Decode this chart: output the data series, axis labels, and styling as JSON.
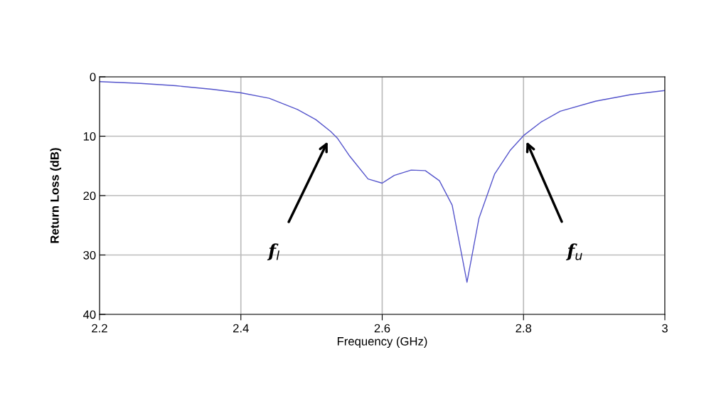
{
  "chart_data": {
    "type": "line",
    "xlabel": "Frequency (GHz)",
    "ylabel": "Return Loss (dB)",
    "x": [
      2.2,
      2.258,
      2.308,
      2.359,
      2.4,
      2.44,
      2.48,
      2.506,
      2.527,
      2.537,
      2.553,
      2.58,
      2.6,
      2.617,
      2.641,
      2.661,
      2.681,
      2.699,
      2.72,
      2.737,
      2.759,
      2.781,
      2.8,
      2.825,
      2.852,
      2.902,
      2.952,
      3.0
    ],
    "series": [
      {
        "color": "#5555cc",
        "values": [
          0.8,
          1.1,
          1.5,
          2.1,
          2.7,
          3.6,
          5.5,
          7.2,
          9.2,
          10.4,
          13.2,
          17.2,
          17.9,
          16.6,
          15.7,
          15.8,
          17.5,
          21.6,
          34.6,
          23.8,
          16.4,
          12.4,
          9.9,
          7.6,
          5.8,
          4.1,
          3.0,
          2.3
        ]
      }
    ],
    "xlim": [
      2.2,
      3
    ],
    "xticks": [
      2.2,
      2.4,
      2.6,
      2.8,
      3
    ],
    "ylim": [
      40,
      0
    ],
    "yticks": [
      0,
      10,
      20,
      30,
      40
    ],
    "grid": true,
    "annotations": [
      "f$_{l}$",
      "f$_{u}$"
    ]
  }
}
